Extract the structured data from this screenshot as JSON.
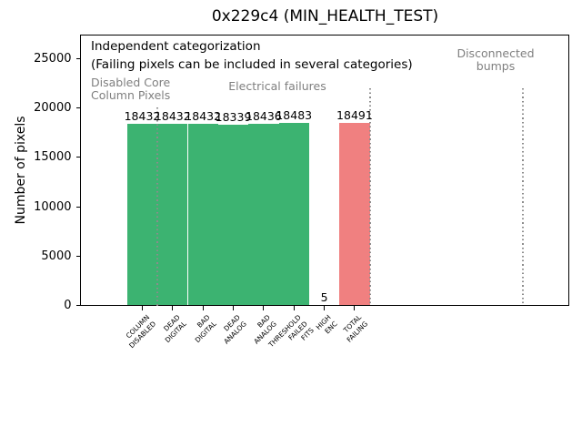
{
  "chart_data": {
    "type": "bar",
    "title": "0x229c4 (MIN_HEALTH_TEST)",
    "xlabel": "",
    "ylabel": "Number of pixels",
    "ylim": [
      0,
      27440
    ],
    "yticks": [
      0,
      5000,
      10000,
      15000,
      20000,
      25000
    ],
    "grid": false,
    "legend": null,
    "categories": [
      "COLUMN\nDISABLED",
      "DEAD\nDIGITAL",
      "BAD\nDIGITAL",
      "DEAD\nANALOG",
      "BAD\nANALOG",
      "THRESHOLD\nFAILED\nFITS",
      "HIGH\nENC",
      "TOTAL\nFAILING"
    ],
    "values": [
      18432,
      18432,
      18432,
      18339,
      18436,
      18483,
      5,
      18491
    ],
    "value_labels": [
      "18432",
      "18432",
      "18432",
      "18339",
      "18436",
      "18483",
      "5",
      "18491"
    ],
    "bar_colors": [
      "#3cb371",
      "#3cb371",
      "#3cb371",
      "#3cb371",
      "#3cb371",
      "#3cb371",
      "#3cb371",
      "#f08080"
    ],
    "colors": {
      "bar_green": "#3cb371",
      "bar_red": "#f08080",
      "group_label_gray": "#7f7f7f",
      "separator_gray": "#8c8c8c"
    },
    "annotations": {
      "note_line1": "Independent categorization",
      "note_line2": "(Failing pixels can be included in several categories)",
      "group_disabled_core": "Disabled Core\nColumn Pixels",
      "group_electrical": "Electrical failures",
      "group_disconnected": "Disconnected\nbumps"
    }
  }
}
